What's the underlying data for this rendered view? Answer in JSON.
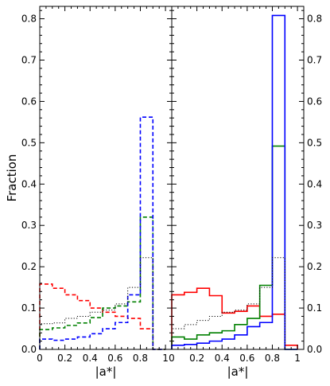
{
  "chart_data": [
    {
      "type": "line",
      "drawstyle": "step",
      "panel": "left",
      "xlabel": "|a*|",
      "ylabel": "Fraction",
      "xlim": [
        0,
        1.05
      ],
      "ylim": [
        0,
        0.83
      ],
      "x_ticks": [
        "0",
        "0.2",
        "0.4",
        "0.6",
        "0.8",
        "1"
      ],
      "y_ticks": [
        "0.0",
        "0.1",
        "0.2",
        "0.3",
        "0.4",
        "0.5",
        "0.6",
        "0.7",
        "0.8"
      ],
      "bin_edges": [
        0,
        0.1,
        0.2,
        0.3,
        0.4,
        0.5,
        0.6,
        0.7,
        0.8,
        0.9,
        1.0
      ],
      "series": [
        {
          "color": "#ff0000",
          "linestyle": "dashed",
          "values": [
            0.158,
            0.148,
            0.132,
            0.118,
            0.1,
            0.09,
            0.08,
            0.075,
            0.05,
            0.0
          ]
        },
        {
          "color": "#008000",
          "linestyle": "dashed",
          "values": [
            0.048,
            0.052,
            0.058,
            0.064,
            0.077,
            0.1,
            0.105,
            0.115,
            0.32,
            0.0
          ]
        },
        {
          "color": "#0000ff",
          "linestyle": "dashed",
          "values": [
            0.025,
            0.022,
            0.025,
            0.03,
            0.038,
            0.05,
            0.065,
            0.132,
            0.562,
            0.0
          ]
        },
        {
          "color": "#000000",
          "linestyle": "dotted",
          "values": [
            0.062,
            0.064,
            0.075,
            0.08,
            0.09,
            0.095,
            0.11,
            0.15,
            0.222,
            0.0
          ]
        }
      ]
    },
    {
      "type": "line",
      "drawstyle": "step",
      "panel": "right",
      "xlabel": "|a*|",
      "ylabel": "",
      "xlim": [
        0,
        1.05
      ],
      "ylim": [
        0,
        0.83
      ],
      "x_ticks": [
        "0",
        "0.2",
        "0.4",
        "0.6",
        "0.8",
        "1"
      ],
      "y_ticks": [
        "0.0",
        "0.1",
        "0.2",
        "0.3",
        "0.4",
        "0.5",
        "0.6",
        "0.7",
        "0.8"
      ],
      "bin_edges": [
        0,
        0.1,
        0.2,
        0.3,
        0.4,
        0.5,
        0.6,
        0.7,
        0.8,
        0.9,
        1.0
      ],
      "series": [
        {
          "color": "#ff0000",
          "linestyle": "solid",
          "values": [
            0.132,
            0.138,
            0.148,
            0.13,
            0.088,
            0.092,
            0.105,
            0.08,
            0.085,
            0.01
          ]
        },
        {
          "color": "#008000",
          "linestyle": "solid",
          "values": [
            0.03,
            0.025,
            0.035,
            0.04,
            0.045,
            0.06,
            0.075,
            0.155,
            0.492,
            0.0
          ]
        },
        {
          "color": "#0000ff",
          "linestyle": "solid",
          "values": [
            0.01,
            0.012,
            0.015,
            0.02,
            0.025,
            0.035,
            0.055,
            0.065,
            0.808,
            0.0
          ]
        },
        {
          "color": "#000000",
          "linestyle": "dotted",
          "values": [
            0.05,
            0.06,
            0.07,
            0.08,
            0.09,
            0.095,
            0.11,
            0.15,
            0.222,
            0.0
          ]
        }
      ]
    }
  ]
}
